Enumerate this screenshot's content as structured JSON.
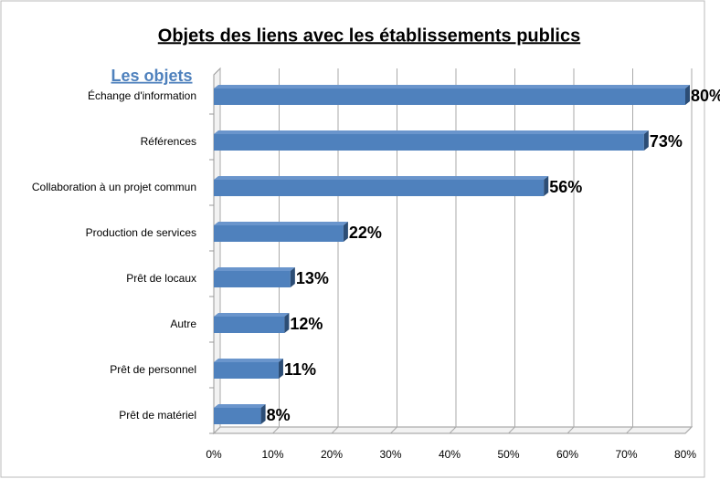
{
  "chart_data": {
    "type": "bar",
    "orientation": "horizontal",
    "title": "Objets des liens avec les établissements publics",
    "y_axis_label": "Les objets",
    "categories": [
      "Échange d'information",
      "Références",
      "Collaboration à un projet commun",
      "Production de services",
      "Prêt de locaux",
      "Autre",
      "Prêt de personnel",
      "Prêt de matériel"
    ],
    "values": [
      80,
      73,
      56,
      22,
      13,
      12,
      11,
      8
    ],
    "value_labels": [
      "80%",
      "73%",
      "56%",
      "22%",
      "13%",
      "12%",
      "11%",
      "8%"
    ],
    "color": "#4f81bd",
    "xlim": [
      0,
      80
    ],
    "xticks": [
      {
        "value": 0,
        "label": "0%"
      },
      {
        "value": 10,
        "label": "10%"
      },
      {
        "value": 20,
        "label": "20%"
      },
      {
        "value": 30,
        "label": "30%"
      },
      {
        "value": 40,
        "label": "40%"
      },
      {
        "value": 50,
        "label": "50%"
      },
      {
        "value": 60,
        "label": "60%"
      },
      {
        "value": 70,
        "label": "70%"
      },
      {
        "value": 80,
        "label": "80%"
      }
    ],
    "grid": true
  }
}
